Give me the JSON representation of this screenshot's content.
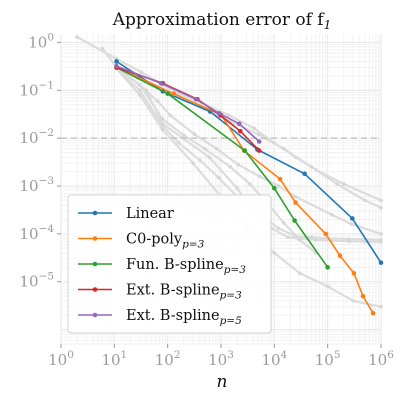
{
  "chart_data": {
    "type": "line",
    "title": "Approximation error of f",
    "title_subscript": "1",
    "xlabel": "n",
    "ylabel": "",
    "x_scale": "log",
    "y_scale": "log",
    "xlim": [
      1,
      1000000
    ],
    "ylim": [
      5e-07,
      1.5
    ],
    "x_ticks": [
      1,
      10,
      100,
      1000,
      10000,
      100000,
      1000000
    ],
    "x_tick_labels": [
      [
        "10",
        "0"
      ],
      [
        "10",
        "1"
      ],
      [
        "10",
        "2"
      ],
      [
        "10",
        "3"
      ],
      [
        "10",
        "4"
      ],
      [
        "10",
        "5"
      ],
      [
        "10",
        "6"
      ]
    ],
    "y_ticks": [
      1e-05,
      0.0001,
      0.001,
      0.01,
      0.1,
      1
    ],
    "y_tick_labels": [
      [
        "10",
        "−5"
      ],
      [
        "10",
        "−4"
      ],
      [
        "10",
        "−3"
      ],
      [
        "10",
        "−2"
      ],
      [
        "10",
        "−1"
      ],
      [
        "10",
        "0"
      ]
    ],
    "grid": true,
    "reference_line": {
      "y": 0.01,
      "style": "dashed",
      "color": "#bbbbbb"
    },
    "legend": {
      "position": "bottom-left"
    },
    "series": [
      {
        "name": "Linear",
        "subscript": "",
        "color": "#1f77b4",
        "x": [
          11,
          81,
          625,
          4800,
          37000,
          290000,
          1000000
        ],
        "y": [
          0.4,
          0.095,
          0.036,
          0.0058,
          0.0018,
          0.00021,
          2.5e-05
        ]
      },
      {
        "name": "C0-poly",
        "subscript": "p=3",
        "color": "#ff7f0e",
        "x": [
          11,
          130,
          1000,
          2700,
          12800,
          25000,
          92000,
          170000,
          310000,
          460000,
          710000
        ],
        "y": [
          0.3,
          0.085,
          0.031,
          0.0055,
          0.0014,
          0.00045,
          0.0001,
          3.5e-05,
          1.5e-05,
          5e-06,
          2.2e-06
        ]
      },
      {
        "name": "Fun. B-spline",
        "subscript": "p=3",
        "color": "#2ca02c",
        "x": [
          11,
          100,
          2800,
          10000,
          24000,
          100000
        ],
        "y": [
          0.3,
          0.085,
          0.0055,
          0.0009,
          0.00019,
          2e-05
        ]
      },
      {
        "name": "Ext. B-spline",
        "subscript": "p=3",
        "color": "#d62728",
        "x": [
          11,
          81,
          360,
          980,
          2300,
          5200
        ],
        "y": [
          0.3,
          0.14,
          0.065,
          0.03,
          0.014,
          0.0055
        ]
      },
      {
        "name": "Ext. B-spline",
        "subscript": "p=5",
        "color": "#9467bd",
        "x": [
          11,
          75,
          340,
          920,
          2200,
          5200
        ],
        "y": [
          0.32,
          0.14,
          0.065,
          0.033,
          0.02,
          0.0085
        ]
      }
    ],
    "background_series": [
      {
        "x": [
          2,
          11,
          32,
          80,
          160,
          430,
          1400,
          4200,
          9800,
          15000,
          25000,
          60000,
          200000,
          1000000
        ],
        "y": [
          1.3,
          0.45,
          0.24,
          0.13,
          0.085,
          0.055,
          0.03,
          0.016,
          0.008,
          0.006,
          0.004,
          0.0022,
          0.0011,
          0.0005
        ]
      },
      {
        "x": [
          6,
          11,
          29,
          64,
          112,
          320,
          830,
          2100,
          5200,
          12000,
          25000,
          120000,
          280000,
          1000000
        ],
        "y": [
          0.75,
          0.3,
          0.13,
          0.06,
          0.03,
          0.012,
          0.006,
          0.0028,
          0.0016,
          0.001,
          0.0006,
          0.00025,
          0.00016,
          0.0001
        ]
      },
      {
        "x": [
          11,
          40,
          80,
          600,
          2000,
          4000,
          9000,
          18000,
          28000,
          60000,
          120000,
          250000,
          500000,
          1000000
        ],
        "y": [
          0.3,
          0.1,
          0.02,
          0.004,
          0.0009,
          0.0003,
          0.00013,
          8.5e-05,
          8e-05,
          7.5e-05,
          7.2e-05,
          7e-05,
          6.9e-05,
          6.8e-05
        ]
      },
      {
        "x": [
          11,
          30,
          80,
          200,
          500,
          1500,
          3500,
          7500,
          15000,
          30000,
          60000
        ],
        "y": [
          0.3,
          0.13,
          0.025,
          0.0115,
          0.006,
          0.0025,
          0.0011,
          0.00043,
          0.00017,
          7.5e-05,
          4e-05
        ]
      },
      {
        "x": [
          11,
          30,
          80,
          160,
          400,
          900,
          2000,
          5000,
          12000,
          25000,
          50000,
          100000,
          250000,
          1000000
        ],
        "y": [
          0.28,
          0.1,
          0.018,
          0.008,
          0.0035,
          0.0015,
          0.0006,
          0.00028,
          0.00013,
          9e-05,
          8.5e-05,
          8e-05,
          7.8e-05,
          7.5e-05
        ]
      },
      {
        "x": [
          11,
          30,
          80,
          300,
          1000,
          3000,
          10000,
          30000,
          100000,
          300000,
          1000000
        ],
        "y": [
          0.28,
          0.08,
          0.015,
          0.003,
          0.0006,
          0.00015,
          4e-05,
          1.5e-05,
          8e-06,
          4e-06,
          3e-06
        ]
      },
      {
        "x": [
          11,
          50,
          150,
          500,
          1500,
          5000,
          15000,
          50000,
          150000,
          500000,
          1000000
        ],
        "y": [
          0.3,
          0.14,
          0.075,
          0.04,
          0.022,
          0.012,
          0.006,
          0.0025,
          0.0011,
          0.0005,
          0.00035
        ]
      }
    ]
  }
}
